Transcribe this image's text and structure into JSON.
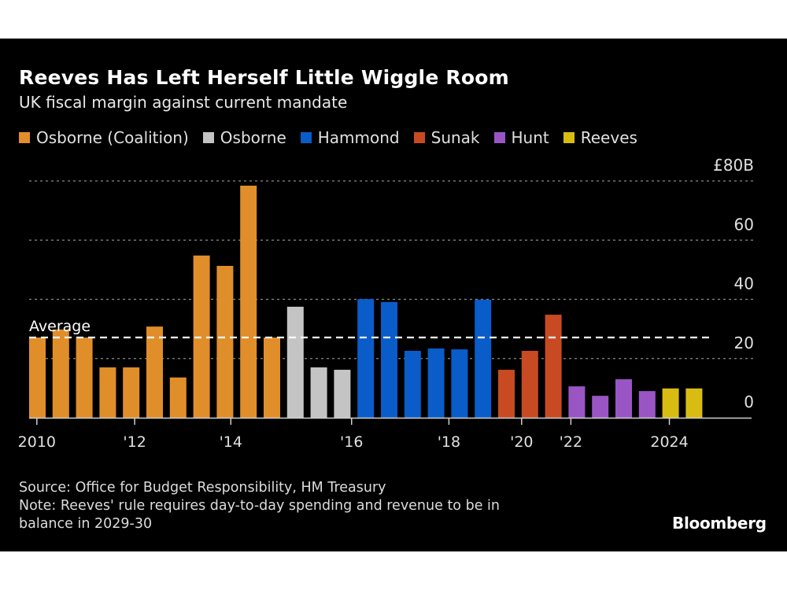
{
  "header": {
    "title": "Reeves Has Left Herself Little Wiggle Room",
    "subtitle": "UK fiscal margin against current mandate"
  },
  "legend": [
    {
      "label": "Osborne (Coalition)",
      "color": "#e08e2a"
    },
    {
      "label": "Osborne",
      "color": "#c4c4c4"
    },
    {
      "label": "Hammond",
      "color": "#0a5cc8"
    },
    {
      "label": "Sunak",
      "color": "#c84a22"
    },
    {
      "label": "Hunt",
      "color": "#9a55c4"
    },
    {
      "label": "Reeves",
      "color": "#d8bc12"
    }
  ],
  "footer": {
    "source": "Source: Office for Budget Responsibility, HM Treasury",
    "note_line1": "Note: Reeves' rule requires day-to-day spending and revenue to be in",
    "note_line2": "balance in 2029-30",
    "brand": "Bloomberg"
  },
  "chart_data": {
    "type": "bar",
    "title": "Reeves Has Left Herself Little Wiggle Room",
    "subtitle": "UK fiscal margin against current mandate",
    "xlabel": "",
    "ylabel": "£B",
    "ylim": [
      0,
      80
    ],
    "yticks": [
      0,
      20,
      40,
      60,
      80
    ],
    "ytick_labels": [
      "0",
      "20",
      "40",
      "60",
      "£80B"
    ],
    "grid": true,
    "legend_position": "top-left",
    "xtick_labels": [
      "2010",
      "'12",
      "'14",
      "'16",
      "'18",
      "'20",
      "'22",
      "2024"
    ],
    "xtick_bar_index": [
      0.33,
      4.5,
      8.6,
      13.75,
      17.9,
      21.0,
      23.1,
      27.3
    ],
    "average": {
      "label": "Average",
      "value": 27.1
    },
    "series": [
      {
        "name": "Osborne (Coalition)",
        "color": "#e08e2a",
        "values": [
          27.1,
          29.8,
          27.1,
          17.0,
          17.0,
          30.8,
          13.6,
          54.8,
          51.3,
          78.4,
          27.1
        ]
      },
      {
        "name": "Osborne",
        "color": "#c4c4c4",
        "values": [
          37.5,
          17.0,
          16.2
        ]
      },
      {
        "name": "Hammond",
        "color": "#0a5cc8",
        "values": [
          40.1,
          39.1,
          22.6,
          23.4,
          23.1,
          39.9
        ]
      },
      {
        "name": "Sunak",
        "color": "#c84a22",
        "values": [
          16.2,
          22.6,
          34.8
        ]
      },
      {
        "name": "Hunt",
        "color": "#9a55c4",
        "values": [
          10.6,
          7.4,
          13.0,
          9.0
        ]
      },
      {
        "name": "Reeves",
        "color": "#d8bc12",
        "values": [
          9.9,
          9.9
        ]
      }
    ]
  }
}
